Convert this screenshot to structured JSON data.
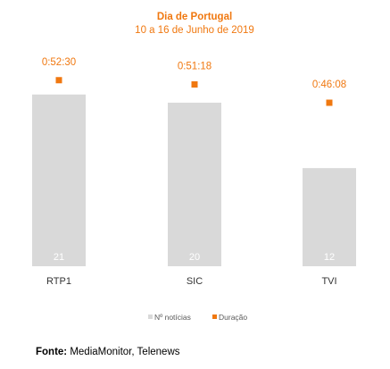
{
  "chart_data": {
    "type": "bar",
    "title": "Dia de Portugal",
    "subtitle": "10 a 16 de Junho de 2019",
    "categories": [
      "RTP1",
      "SIC",
      "TVI"
    ],
    "series": [
      {
        "name": "Nº notícias",
        "kind": "bar",
        "values": [
          21,
          20,
          12
        ],
        "color": "#d9d9d9"
      },
      {
        "name": "Duração",
        "kind": "marker",
        "values": [
          "0:52:30",
          "0:51:18",
          "0:46:08"
        ],
        "color": "#f07810"
      }
    ],
    "ylim_news": [
      0,
      26
    ],
    "ylim_duration_seconds": [
      0,
      3600
    ],
    "legend_position": "bottom",
    "grid": false
  },
  "colors": {
    "accent": "#f07810",
    "bar": "#d9d9d9",
    "text": "#333333"
  },
  "source": {
    "label": "Fonte:",
    "text": " MediaMonitor, Telenews"
  }
}
